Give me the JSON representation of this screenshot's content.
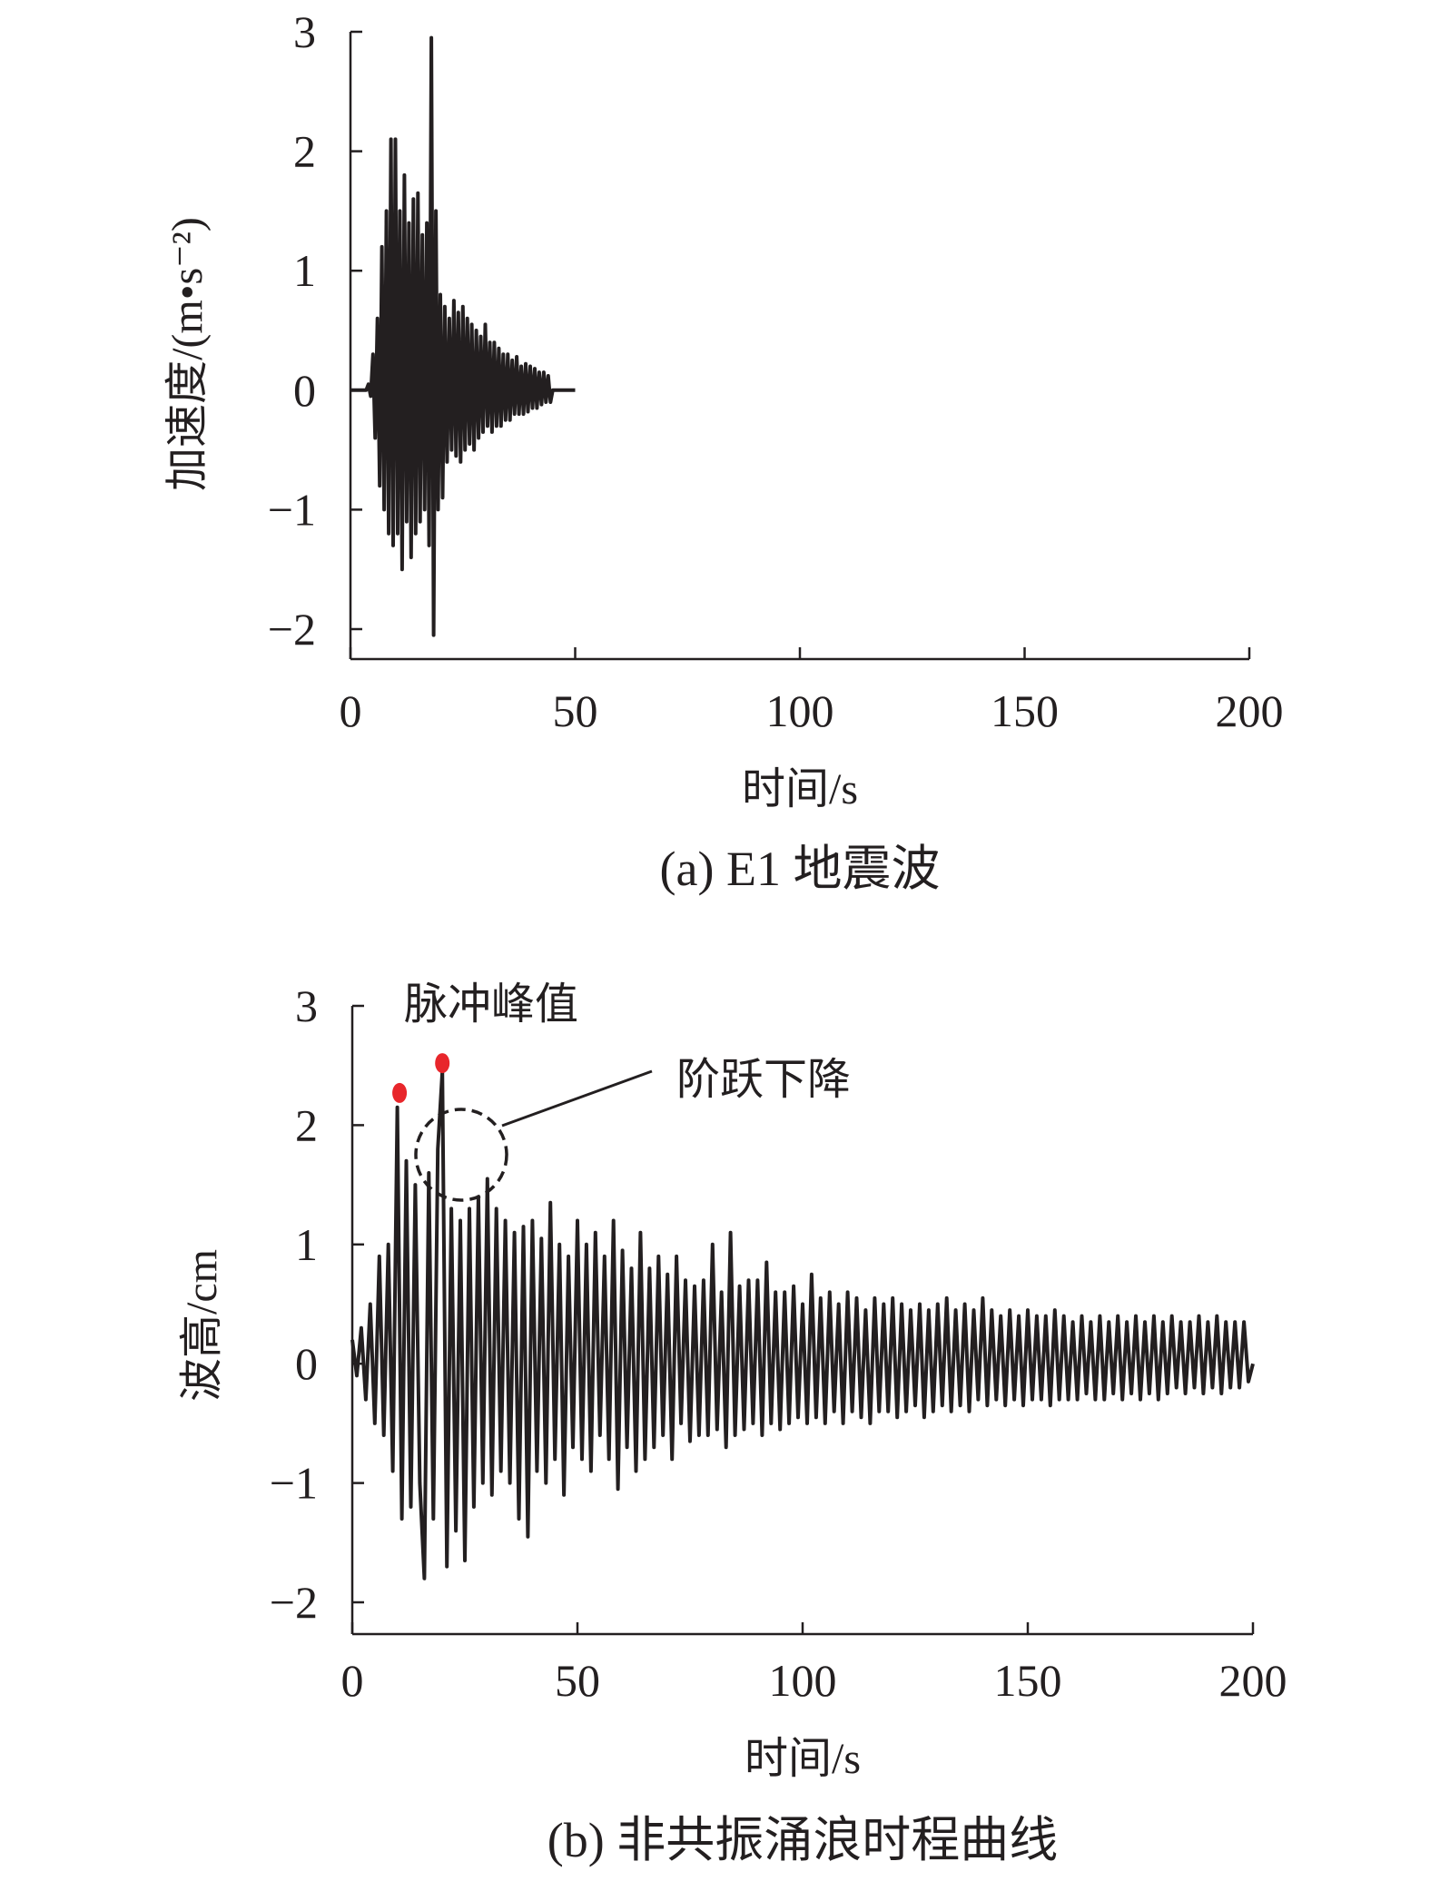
{
  "chart_data": [
    {
      "type": "line",
      "caption": "(a) E1 地震波",
      "xlabel": "时间/s",
      "ylabel": "加速度/(m•s⁻²)",
      "xlim": [
        0,
        200
      ],
      "ylim": [
        -2,
        3
      ],
      "xticks": [
        "0",
        "50",
        "100",
        "150",
        "200"
      ],
      "yticks": [
        "3",
        "2",
        "1",
        "0",
        "−1",
        "−2"
      ],
      "grid": false,
      "line_color": "#231f20",
      "x_start": 0,
      "x_step": 0.5,
      "values": [
        0,
        0,
        0,
        0,
        0,
        0,
        0,
        0,
        0.05,
        -0.05,
        0.3,
        -0.4,
        0.6,
        -0.8,
        1.2,
        -1.0,
        1.5,
        -1.2,
        2.1,
        -1.3,
        2.1,
        -1.2,
        1.5,
        -1.5,
        1.8,
        -1.1,
        1.4,
        -1.4,
        1.6,
        -1.2,
        1.65,
        -1.1,
        1.3,
        -1.0,
        1.4,
        -1.3,
        2.95,
        -2.05,
        1.5,
        -1.0,
        0.8,
        -0.9,
        0.7,
        -0.6,
        0.6,
        -0.5,
        0.75,
        -0.55,
        0.65,
        -0.6,
        0.7,
        -0.5,
        0.6,
        -0.45,
        0.55,
        -0.5,
        0.5,
        -0.4,
        0.45,
        -0.35,
        0.55,
        -0.3,
        0.4,
        -0.35,
        0.4,
        -0.3,
        0.35,
        -0.3,
        0.3,
        -0.25,
        0.3,
        -0.25,
        0.25,
        -0.2,
        0.28,
        -0.2,
        0.2,
        -0.2,
        0.22,
        -0.18,
        0.2,
        -0.15,
        0.18,
        -0.15,
        0.15,
        -0.12,
        0.15,
        -0.1,
        0.12,
        -0.1,
        0,
        0,
        0,
        0,
        0,
        0,
        0,
        0,
        0,
        0,
        0
      ]
    },
    {
      "type": "line",
      "caption": "(b) 非共振涌浪时程曲线",
      "xlabel": "时间/s",
      "ylabel": "波高/cm",
      "xlim": [
        0,
        200
      ],
      "ylim": [
        -2,
        3
      ],
      "xticks": [
        "0",
        "50",
        "100",
        "150",
        "200"
      ],
      "yticks": [
        "3",
        "2",
        "1",
        "0",
        "−1",
        "−2"
      ],
      "grid": false,
      "line_color": "#231f20",
      "x_start": 0,
      "x_step": 1,
      "values": [
        0.2,
        -0.1,
        0.3,
        -0.3,
        0.5,
        -0.5,
        0.9,
        -0.6,
        1.0,
        -0.9,
        2.15,
        -1.3,
        1.7,
        -1.2,
        1.5,
        -1.0,
        -1.8,
        1.6,
        -1.3,
        1.8,
        2.45,
        -1.7,
        1.3,
        -1.4,
        1.2,
        -1.65,
        1.3,
        -1.2,
        1.4,
        -1.0,
        1.55,
        -1.1,
        1.3,
        -0.9,
        1.2,
        -1.0,
        1.1,
        -1.3,
        1.15,
        -1.45,
        1.2,
        -0.9,
        1.05,
        -1.0,
        1.35,
        -0.8,
        1.0,
        -1.1,
        0.9,
        -0.7,
        1.2,
        -0.8,
        1.0,
        -0.9,
        1.1,
        -0.6,
        0.9,
        -0.8,
        1.2,
        -1.05,
        0.95,
        -0.7,
        0.8,
        -0.9,
        1.1,
        -0.8,
        0.8,
        -0.7,
        0.9,
        -0.6,
        0.75,
        -0.8,
        0.9,
        -0.5,
        0.7,
        -0.65,
        0.65,
        -0.6,
        0.7,
        -0.6,
        1.0,
        -0.55,
        0.6,
        -0.7,
        1.1,
        -0.6,
        0.65,
        -0.55,
        0.7,
        -0.5,
        0.7,
        -0.6,
        0.85,
        -0.5,
        0.6,
        -0.55,
        0.6,
        -0.5,
        0.65,
        -0.45,
        0.5,
        -0.5,
        0.75,
        -0.45,
        0.55,
        -0.5,
        0.6,
        -0.4,
        0.5,
        -0.5,
        0.6,
        -0.4,
        0.55,
        -0.45,
        0.45,
        -0.5,
        0.55,
        -0.4,
        0.5,
        -0.4,
        0.55,
        -0.45,
        0.5,
        -0.4,
        0.45,
        -0.35,
        0.5,
        -0.45,
        0.45,
        -0.4,
        0.5,
        -0.35,
        0.55,
        -0.4,
        0.45,
        -0.35,
        0.5,
        -0.4,
        0.45,
        -0.3,
        0.55,
        -0.35,
        0.45,
        -0.3,
        0.4,
        -0.35,
        0.45,
        -0.3,
        0.4,
        -0.35,
        0.45,
        -0.3,
        0.4,
        -0.3,
        0.4,
        -0.35,
        0.45,
        -0.3,
        0.4,
        -0.3,
        0.35,
        -0.3,
        0.4,
        -0.25,
        0.35,
        -0.3,
        0.4,
        -0.3,
        0.35,
        -0.25,
        0.4,
        -0.3,
        0.35,
        -0.25,
        0.4,
        -0.3,
        0.35,
        -0.25,
        0.4,
        -0.3,
        0.35,
        -0.25,
        0.4,
        -0.2,
        0.35,
        -0.25,
        0.35,
        -0.2,
        0.4,
        -0.25,
        0.35,
        -0.2,
        0.4,
        -0.25,
        0.35,
        -0.2,
        0.35,
        -0.2,
        0.35,
        -0.15,
        0.0
      ],
      "annotations": {
        "peak_label": "脉冲峰值",
        "peak_color": "#e8262b",
        "peaks": [
          {
            "x": 10.5,
            "y": 2.27
          },
          {
            "x": 20,
            "y": 2.52
          }
        ],
        "step_label": "阶跃下降"
      }
    }
  ]
}
